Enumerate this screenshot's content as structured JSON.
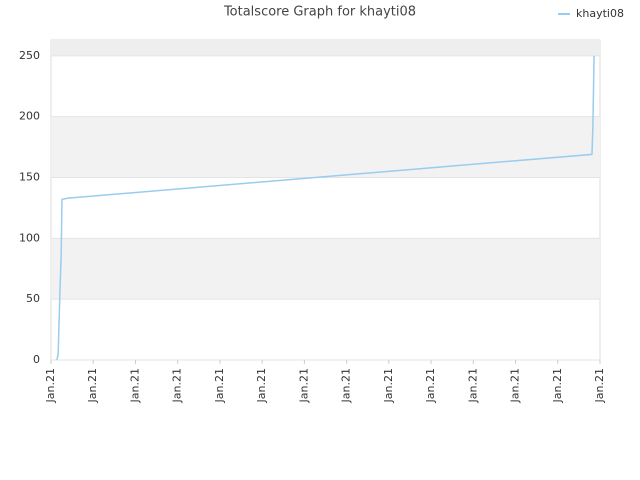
{
  "chart_data": {
    "type": "line",
    "title": "Totalscore Graph for khayti08",
    "x": [
      0.14,
      0.17,
      0.19,
      0.21,
      0.24,
      0.26,
      0.4,
      12.81,
      12.83,
      12.86
    ],
    "series": [
      {
        "name": "khayti08",
        "color": "#99ccee",
        "values": [
          0,
          5,
          30,
          55,
          85,
          132,
          133,
          169,
          190,
          250
        ]
      }
    ],
    "xlim": [
      0,
      13
    ],
    "ylim": [
      0,
      263
    ],
    "xticks": [
      {
        "value": 0,
        "label": "Jan.21"
      },
      {
        "value": 1,
        "label": "Jan.21"
      },
      {
        "value": 2,
        "label": "Jan.21"
      },
      {
        "value": 3,
        "label": "Jan.21"
      },
      {
        "value": 4,
        "label": "Jan.21"
      },
      {
        "value": 5,
        "label": "Jan.21"
      },
      {
        "value": 6,
        "label": "Jan.21"
      },
      {
        "value": 7,
        "label": "Jan.21"
      },
      {
        "value": 8,
        "label": "Jan.21"
      },
      {
        "value": 9,
        "label": "Jan.21"
      },
      {
        "value": 10,
        "label": "Jan.21"
      },
      {
        "value": 11,
        "label": "Jan.21"
      },
      {
        "value": 12,
        "label": "Jan.21"
      },
      {
        "value": 13,
        "label": "Jan.21"
      }
    ],
    "yticks": [
      0,
      50,
      100,
      150,
      200,
      250
    ],
    "grid": true,
    "legend": "top-right"
  }
}
